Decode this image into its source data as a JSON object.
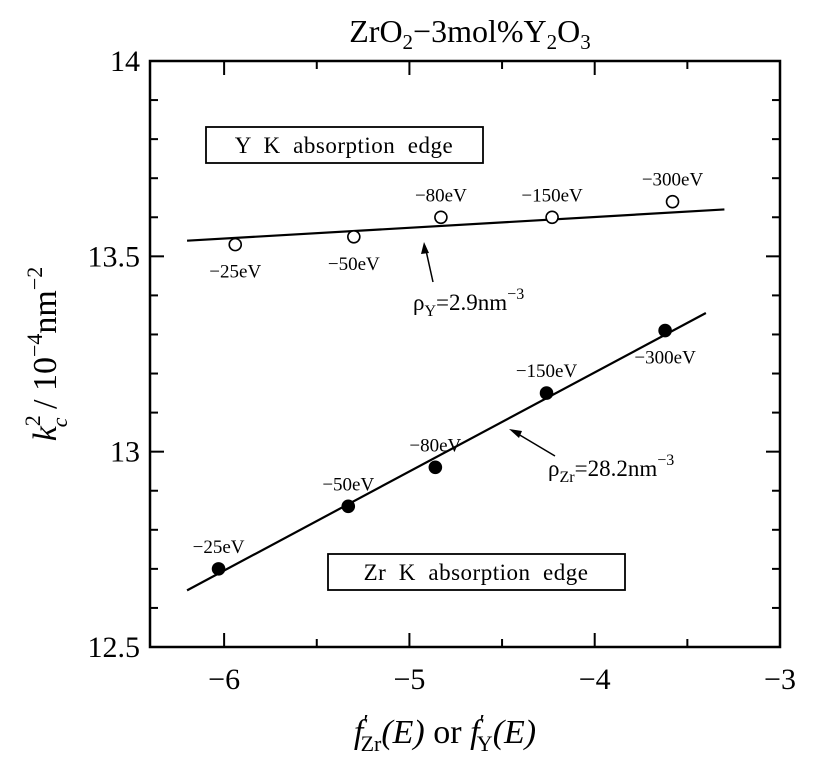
{
  "chart_data": {
    "type": "scatter",
    "title": {
      "main": "ZrO",
      "sub1": "2",
      "mid": "−3mol%Y",
      "sub2": "2",
      "end": "O",
      "sub3": "3"
    },
    "xlabel": {
      "f1": "f",
      "sub1": "Zr",
      "arg1": "(E)",
      "or": " or ",
      "f2": "f",
      "sub2": "Y",
      "arg2": "(E)"
    },
    "ylabel": {
      "k": "k",
      "sub": "c",
      "sup": "2",
      "unit": " / 10",
      "unit_sup": "−4",
      "unit2": "nm",
      "unit2_sup": "−2"
    },
    "xlim": [
      -6.4,
      -3
    ],
    "ylim": [
      12.5,
      14
    ],
    "xticks": [
      -6,
      -5,
      -4,
      -3
    ],
    "xtick_labels": [
      "−6",
      "−5",
      "−4",
      "−3"
    ],
    "yticks": [
      12.5,
      13,
      13.5,
      14
    ],
    "ytick_labels": [
      "12.5",
      "13",
      "13.5",
      "14"
    ],
    "grid": false,
    "series": [
      {
        "name": "Y K absorption edge",
        "marker": "open-circle",
        "points": [
          {
            "x": -5.94,
            "y": 13.53,
            "label": "−25eV",
            "label_pos": "below"
          },
          {
            "x": -5.3,
            "y": 13.55,
            "label": "−50eV",
            "label_pos": "below"
          },
          {
            "x": -4.83,
            "y": 13.6,
            "label": "−80eV",
            "label_pos": "above"
          },
          {
            "x": -4.23,
            "y": 13.6,
            "label": "−150eV",
            "label_pos": "above"
          },
          {
            "x": -3.58,
            "y": 13.64,
            "label": "−300eV",
            "label_pos": "above"
          }
        ],
        "fit_line": {
          "x": [
            -6.2,
            -3.3
          ],
          "y": [
            13.54,
            13.62
          ]
        },
        "fit_label": {
          "rho": "ρ",
          "sub": "Y",
          "value": "=2.9nm",
          "sup": "−3"
        }
      },
      {
        "name": "Zr K absorption edge",
        "marker": "filled-circle",
        "points": [
          {
            "x": -6.03,
            "y": 12.7,
            "label": "−25eV",
            "label_pos": "above"
          },
          {
            "x": -5.33,
            "y": 12.86,
            "label": "−50eV",
            "label_pos": "above"
          },
          {
            "x": -4.86,
            "y": 12.96,
            "label": "−80eV",
            "label_pos": "above"
          },
          {
            "x": -4.26,
            "y": 13.15,
            "label": "−150eV",
            "label_pos": "above"
          },
          {
            "x": -3.62,
            "y": 13.31,
            "label": "−300eV",
            "label_pos": "below"
          }
        ],
        "fit_line": {
          "x": [
            -6.2,
            -3.4
          ],
          "y": [
            12.645,
            13.355
          ]
        },
        "fit_label": {
          "rho": "ρ",
          "sub": "Zr",
          "value": "=28.2nm",
          "sup": "−3"
        }
      }
    ],
    "annotations": [
      {
        "text": "Y  K  absorption  edge",
        "series": 0
      },
      {
        "text": "Zr  K  absorption  edge",
        "series": 1
      }
    ]
  }
}
